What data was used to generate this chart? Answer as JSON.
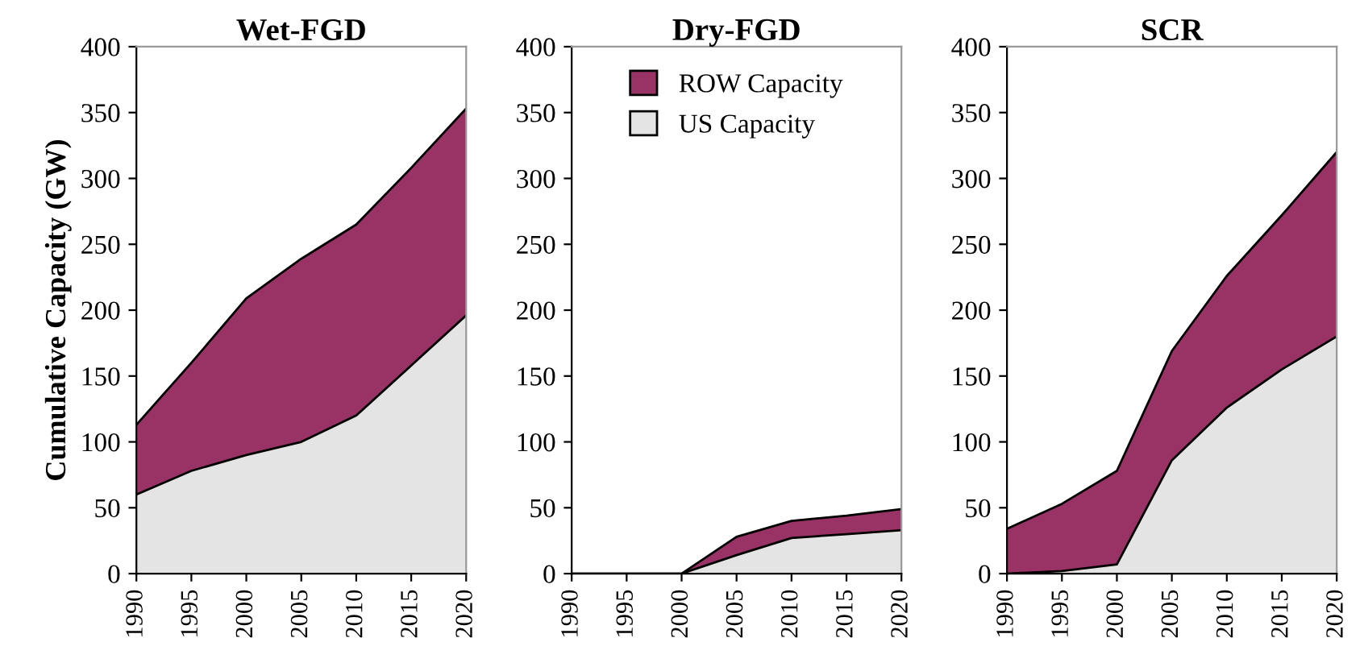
{
  "chart_data": [
    {
      "type": "area",
      "stacked": true,
      "title": "Wet-FGD",
      "ylabel": "Cumulative Capacity (GW)",
      "x": [
        1990,
        1995,
        2000,
        2005,
        2010,
        2015,
        2020
      ],
      "xlim": [
        1990,
        2020
      ],
      "xticks": [
        1990,
        1995,
        2000,
        2005,
        2010,
        2015,
        2020
      ],
      "ylim": [
        0,
        400
      ],
      "yticks": [
        0,
        50,
        100,
        150,
        200,
        250,
        300,
        350,
        400
      ],
      "grid": false,
      "legend": false,
      "series": [
        {
          "color": "#e4e4e4",
          "values": [
            60,
            78,
            90,
            100,
            120,
            158,
            196
          ]
        },
        {
          "color": "#993366",
          "values": [
            53,
            82,
            119,
            139,
            145,
            150,
            157
          ]
        }
      ]
    },
    {
      "type": "area",
      "stacked": true,
      "title": "Dry-FGD",
      "x": [
        1990,
        1995,
        2000,
        2005,
        2010,
        2015,
        2020
      ],
      "xlim": [
        1990,
        2020
      ],
      "xticks": [
        1990,
        1995,
        2000,
        2005,
        2010,
        2015,
        2020
      ],
      "ylim": [
        0,
        400
      ],
      "yticks": [
        0,
        50,
        100,
        150,
        200,
        250,
        300,
        350,
        400
      ],
      "grid": false,
      "legend": "top",
      "series": [
        {
          "name": "US Capacity",
          "color": "#e4e4e4",
          "values": [
            0,
            0,
            0,
            14,
            27,
            30,
            33
          ]
        },
        {
          "name": "ROW Capacity",
          "color": "#993366",
          "values": [
            0,
            0,
            0,
            14,
            13,
            14,
            16
          ]
        }
      ]
    },
    {
      "type": "area",
      "stacked": true,
      "title": "SCR",
      "x": [
        1990,
        1995,
        2000,
        2005,
        2010,
        2015,
        2020
      ],
      "xlim": [
        1990,
        2020
      ],
      "xticks": [
        1990,
        1995,
        2000,
        2005,
        2010,
        2015,
        2020
      ],
      "ylim": [
        0,
        400
      ],
      "yticks": [
        0,
        50,
        100,
        150,
        200,
        250,
        300,
        350,
        400
      ],
      "grid": false,
      "legend": false,
      "series": [
        {
          "color": "#e4e4e4",
          "values": [
            0,
            2,
            7,
            86,
            126,
            155,
            180
          ]
        },
        {
          "color": "#993366",
          "values": [
            34,
            51,
            71,
            83,
            100,
            117,
            140
          ]
        }
      ]
    }
  ]
}
